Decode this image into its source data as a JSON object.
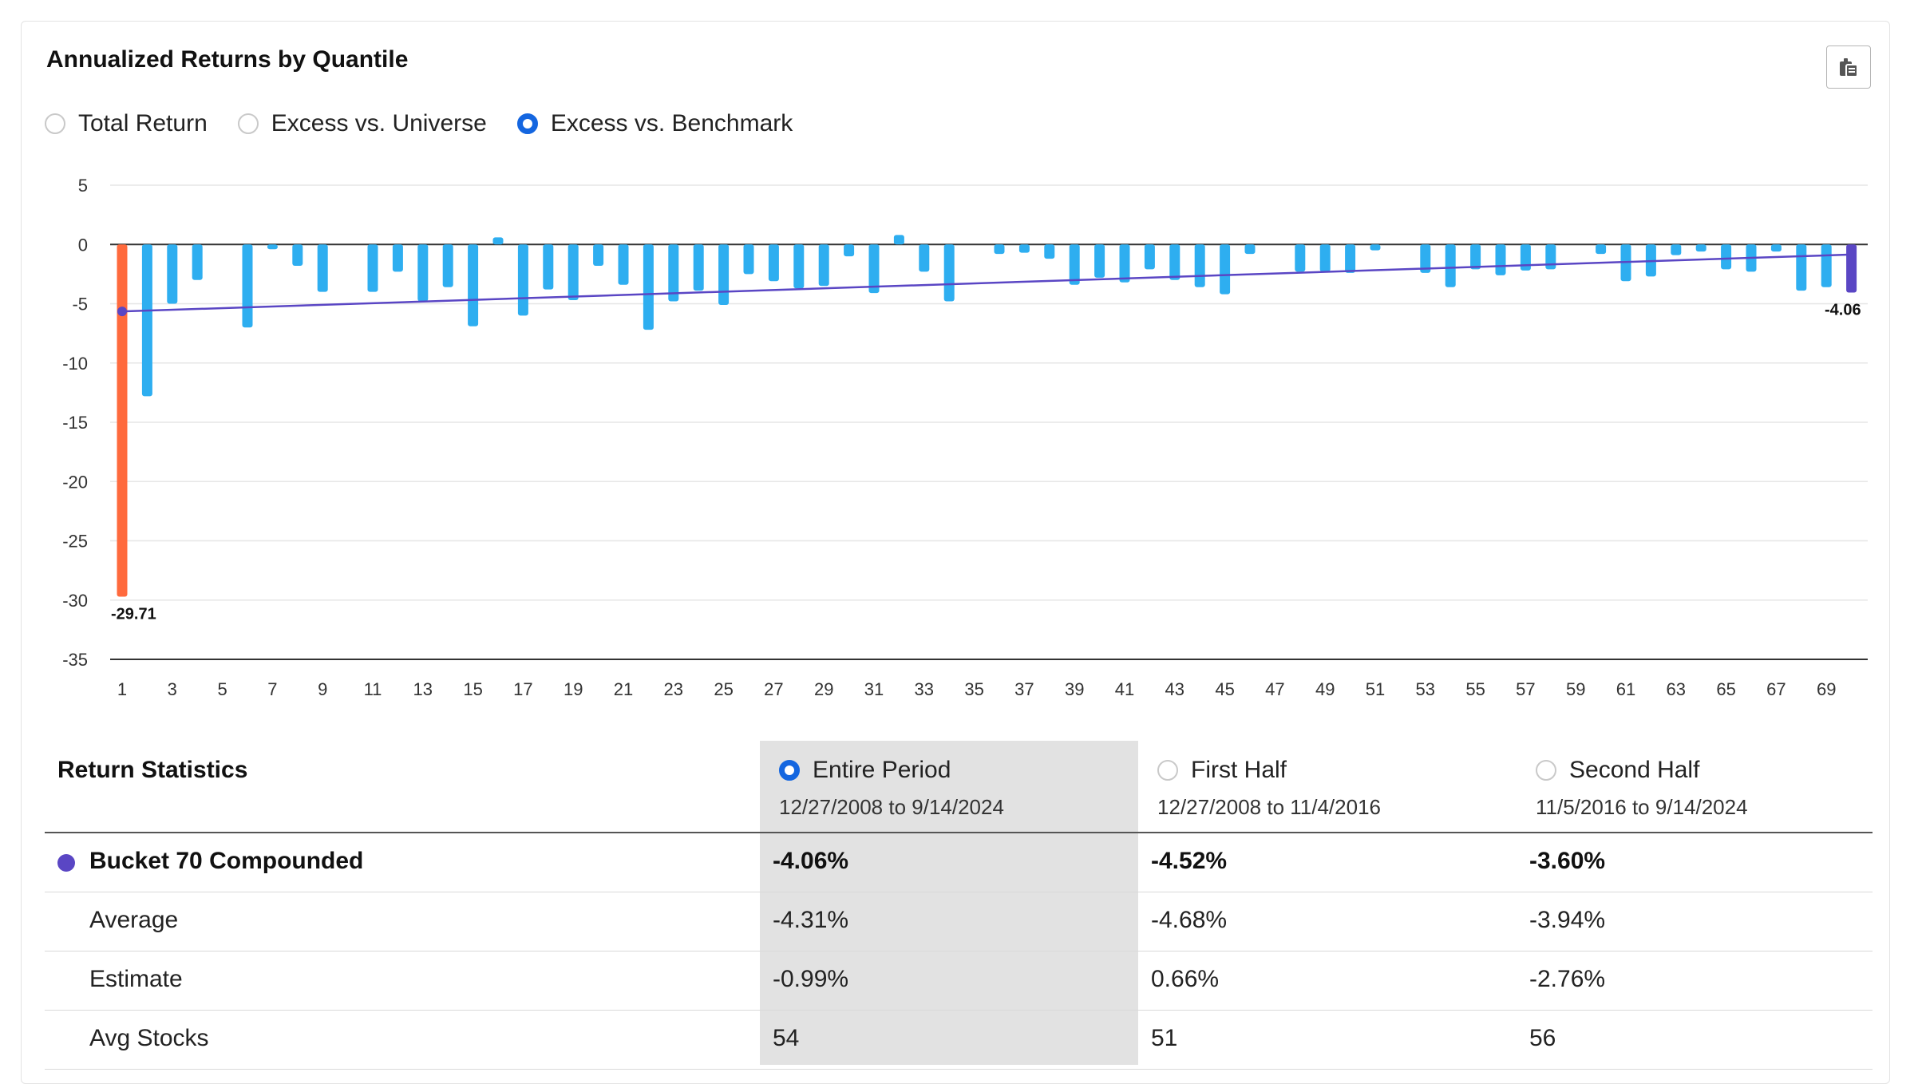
{
  "title": "Annualized Returns by Quantile",
  "copy_button_icon": "clipboard-icon",
  "return_type_options": [
    {
      "label": "Total Return",
      "selected": false
    },
    {
      "label": "Excess vs. Universe",
      "selected": false
    },
    {
      "label": "Excess vs. Benchmark",
      "selected": true
    }
  ],
  "colors": {
    "bar": "#2eaef0",
    "first_bar": "#ff6a3d",
    "last_bar": "#5a46c4",
    "trend": "#5a46c4",
    "radio_on": "#1466e0"
  },
  "chart_data": {
    "type": "bar",
    "x": [
      1,
      2,
      3,
      4,
      5,
      6,
      7,
      8,
      9,
      10,
      11,
      12,
      13,
      14,
      15,
      16,
      17,
      18,
      19,
      20,
      21,
      22,
      23,
      24,
      25,
      26,
      27,
      28,
      29,
      30,
      31,
      32,
      33,
      34,
      35,
      36,
      37,
      38,
      39,
      40,
      41,
      42,
      43,
      44,
      45,
      46,
      47,
      48,
      49,
      50,
      51,
      52,
      53,
      54,
      55,
      56,
      57,
      58,
      59,
      60,
      61,
      62,
      63,
      64,
      65,
      66,
      67,
      68,
      69,
      70
    ],
    "x_tick_labels": [
      "1",
      "3",
      "5",
      "7",
      "9",
      "11",
      "13",
      "15",
      "17",
      "19",
      "21",
      "23",
      "25",
      "27",
      "29",
      "31",
      "33",
      "35",
      "37",
      "39",
      "41",
      "43",
      "45",
      "47",
      "49",
      "51",
      "53",
      "55",
      "57",
      "59",
      "61",
      "63",
      "65",
      "67",
      "69"
    ],
    "values": [
      -29.71,
      -12.8,
      -5.0,
      -3.0,
      0.0,
      -7.0,
      -0.4,
      -1.8,
      -4.0,
      0.0,
      -4.0,
      -2.3,
      -4.8,
      -3.6,
      -6.9,
      0.6,
      -6.0,
      -3.8,
      -4.7,
      -1.8,
      -3.4,
      -7.2,
      -4.8,
      -3.9,
      -5.1,
      -2.5,
      -3.1,
      -3.7,
      -3.5,
      -1.0,
      -4.1,
      0.8,
      -2.3,
      -4.8,
      0.0,
      -0.8,
      -0.7,
      -1.2,
      -3.4,
      -2.8,
      -3.2,
      -2.1,
      -3.0,
      -3.6,
      -4.2,
      -0.8,
      0.0,
      -2.3,
      -2.3,
      -2.4,
      -0.5,
      0.0,
      -2.4,
      -3.6,
      -2.1,
      -2.6,
      -2.2,
      -2.1,
      0.0,
      -0.8,
      -3.1,
      -2.7,
      -0.9,
      -0.6,
      -2.1,
      -2.3,
      -0.6,
      -3.9,
      -3.6,
      -4.06
    ],
    "trend": {
      "start": -5.65,
      "end": -0.85
    },
    "data_labels": [
      {
        "x": 1,
        "label": "-29.71"
      },
      {
        "x": 70,
        "label": "-4.06"
      }
    ],
    "y_ticks": [
      "5",
      "0",
      "-5",
      "-10",
      "-15",
      "-20",
      "-25",
      "-30",
      "-35"
    ],
    "ylim": [
      -35,
      5
    ],
    "grid": true,
    "title": "",
    "xlabel": "",
    "ylabel": ""
  },
  "stats": {
    "title": "Return Statistics",
    "periods": [
      {
        "label": "Entire Period",
        "dates": "12/27/2008 to 9/14/2024",
        "selected": true
      },
      {
        "label": "First Half",
        "dates": "12/27/2008 to 11/4/2016",
        "selected": false
      },
      {
        "label": "Second Half",
        "dates": "11/5/2016 to 9/14/2024",
        "selected": false
      }
    ],
    "rows": [
      {
        "name": "Bucket 70 Compounded",
        "values": [
          "-4.06%",
          "-4.52%",
          "-3.60%"
        ],
        "bold": true
      },
      {
        "name": "Average",
        "values": [
          "-4.31%",
          "-4.68%",
          "-3.94%"
        ],
        "bold": false
      },
      {
        "name": "Estimate",
        "values": [
          "-0.99%",
          "0.66%",
          "-2.76%"
        ],
        "bold": false
      },
      {
        "name": "Avg Stocks",
        "values": [
          "54",
          "51",
          "56"
        ],
        "bold": false
      }
    ]
  }
}
